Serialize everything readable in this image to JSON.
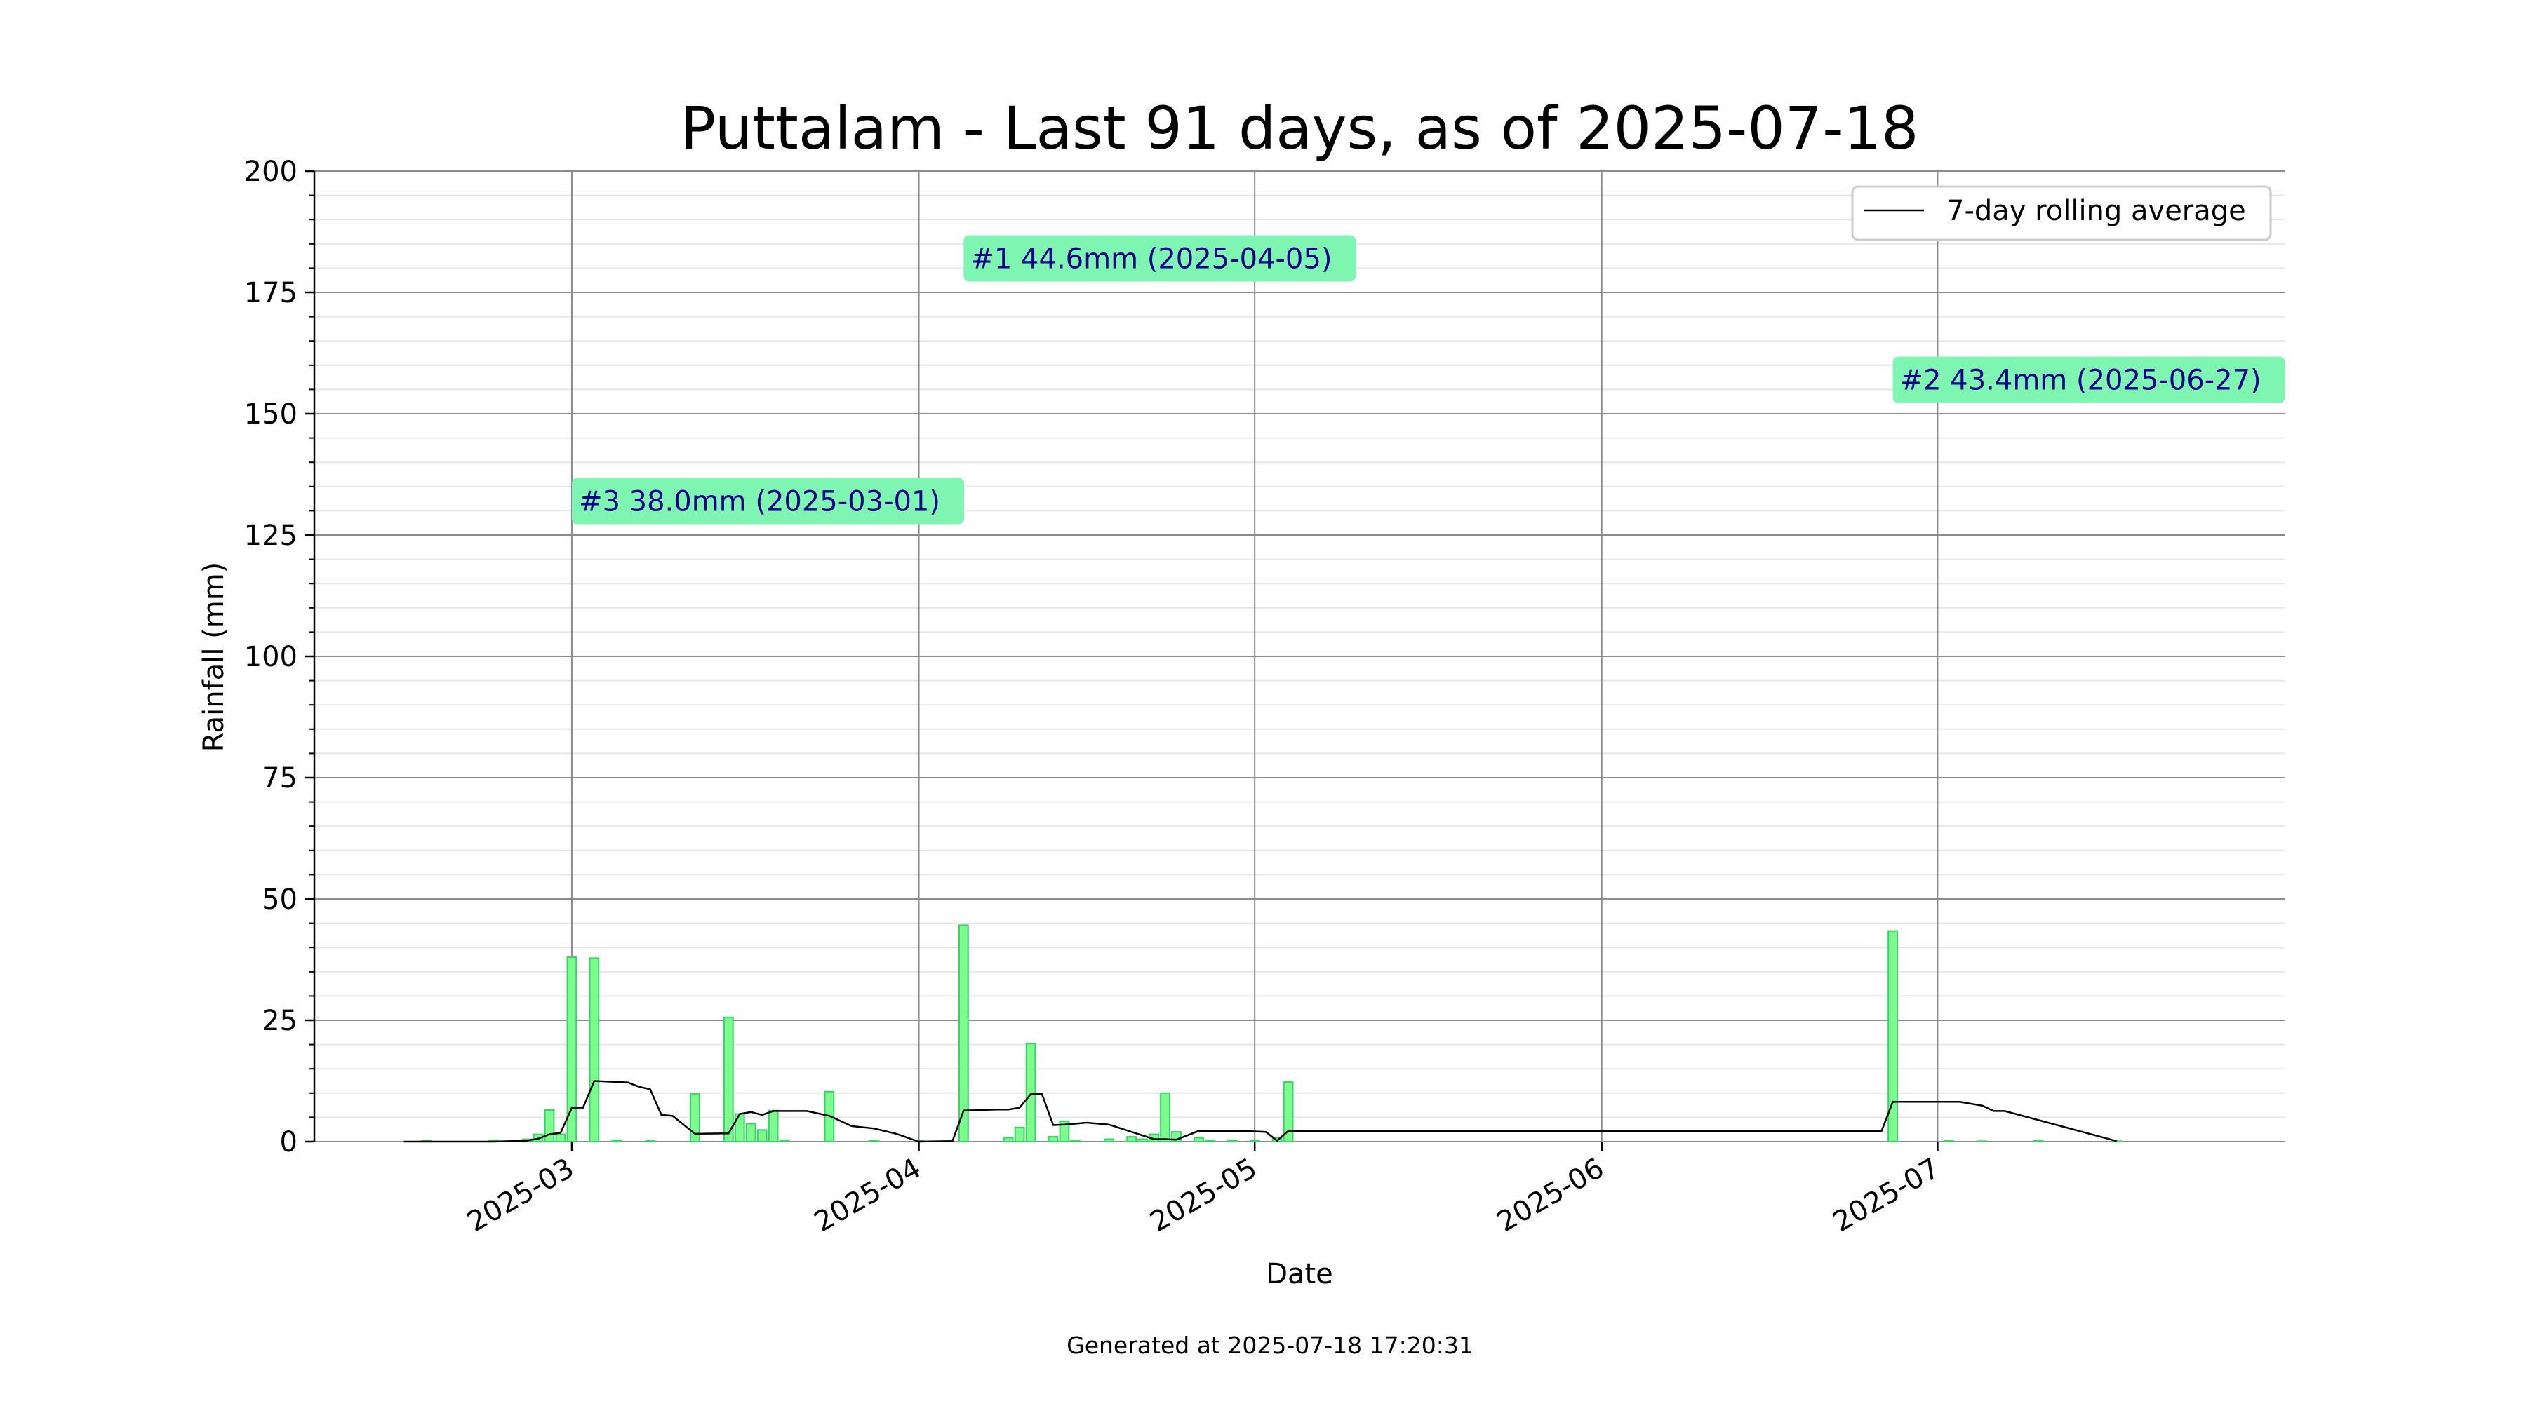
{
  "chart_data": {
    "type": "bar",
    "title": "Puttalam - Last 91 days, as of 2025-07-18",
    "xlabel": "Date",
    "ylabel": "Rainfall (mm)",
    "ylim": [
      0,
      200
    ],
    "y_ticks": [
      0,
      25,
      50,
      75,
      100,
      125,
      150,
      175,
      200
    ],
    "x_ticks": [
      "2025-03",
      "2025-04",
      "2025-05",
      "2025-06",
      "2025-07"
    ],
    "x_tick_dates": [
      "2025-03-01",
      "2025-04-01",
      "2025-05-01",
      "2025-06-01",
      "2025-07-01"
    ],
    "xlim": [
      "2025-02-06",
      "2025-08-01"
    ],
    "grid": true,
    "legend": {
      "position": "top-right",
      "entries": [
        "7-day rolling average"
      ]
    },
    "bar_color": "#7cfc8c",
    "bar_edge_color": "#3ccf6a",
    "line_color": "#000000",
    "annotation_bg": "#7ef5b0",
    "annotation_text_color": "#00008b",
    "series": [
      {
        "name": "Rainfall",
        "x": [
          "2025-02-16",
          "2025-02-22",
          "2025-02-25",
          "2025-02-26",
          "2025-02-27",
          "2025-02-28",
          "2025-03-01",
          "2025-03-03",
          "2025-03-05",
          "2025-03-08",
          "2025-03-12",
          "2025-03-15",
          "2025-03-16",
          "2025-03-17",
          "2025-03-18",
          "2025-03-19",
          "2025-03-20",
          "2025-03-24",
          "2025-03-28",
          "2025-04-01",
          "2025-04-05",
          "2025-04-09",
          "2025-04-10",
          "2025-04-11",
          "2025-04-13",
          "2025-04-14",
          "2025-04-15",
          "2025-04-18",
          "2025-04-20",
          "2025-04-21",
          "2025-04-22",
          "2025-04-23",
          "2025-04-24",
          "2025-04-26",
          "2025-04-27",
          "2025-04-29",
          "2025-05-01",
          "2025-05-03",
          "2025-05-04",
          "2025-06-27",
          "2025-07-02",
          "2025-07-05",
          "2025-07-10",
          "2025-07-17"
        ],
        "values": [
          0.2,
          0.3,
          0.5,
          1.5,
          6.5,
          1.5,
          38.0,
          37.8,
          0.3,
          0.2,
          9.8,
          25.6,
          5.7,
          3.7,
          2.4,
          6.4,
          0.3,
          10.3,
          0.2,
          0.2,
          44.6,
          0.8,
          2.9,
          20.2,
          1.0,
          4.2,
          0.2,
          0.5,
          1.0,
          0.5,
          1.5,
          10.0,
          2.0,
          0.8,
          0.2,
          0.3,
          0.2,
          0.8,
          12.3,
          43.4,
          0.2,
          0.1,
          0.2,
          0.1
        ]
      },
      {
        "name": "7-day rolling average",
        "type": "line",
        "x": [
          "2025-02-14",
          "2025-02-22",
          "2025-02-25",
          "2025-02-26",
          "2025-02-27",
          "2025-02-28",
          "2025-03-01",
          "2025-03-02",
          "2025-03-03",
          "2025-03-06",
          "2025-03-07",
          "2025-03-08",
          "2025-03-09",
          "2025-03-10",
          "2025-03-12",
          "2025-03-15",
          "2025-03-16",
          "2025-03-17",
          "2025-03-18",
          "2025-03-19",
          "2025-03-22",
          "2025-03-24",
          "2025-03-26",
          "2025-03-28",
          "2025-03-30",
          "2025-04-01",
          "2025-04-04",
          "2025-04-05",
          "2025-04-08",
          "2025-04-09",
          "2025-04-10",
          "2025-04-11",
          "2025-04-12",
          "2025-04-13",
          "2025-04-14",
          "2025-04-16",
          "2025-04-18",
          "2025-04-22",
          "2025-04-23",
          "2025-04-24",
          "2025-04-26",
          "2025-04-30",
          "2025-05-02",
          "2025-05-03",
          "2025-05-04",
          "2025-06-26",
          "2025-06-27",
          "2025-07-03",
          "2025-07-05",
          "2025-07-06",
          "2025-07-07",
          "2025-07-17"
        ],
        "values": [
          0,
          0,
          0.2,
          0.6,
          1.5,
          1.8,
          7.0,
          7.0,
          12.5,
          12.2,
          11.3,
          10.8,
          5.5,
          5.3,
          1.6,
          1.7,
          5.7,
          6.1,
          5.5,
          6.3,
          6.3,
          5.3,
          3.2,
          2.7,
          1.6,
          0,
          0.1,
          6.4,
          6.6,
          6.6,
          7.0,
          9.8,
          9.8,
          3.4,
          3.5,
          3.9,
          3.5,
          0.5,
          0.5,
          0.4,
          2.2,
          2.2,
          2.0,
          0.2,
          2.2,
          2.2,
          8.2,
          8.2,
          7.4,
          6.3,
          6.3,
          0.1
        ]
      }
    ],
    "annotations": [
      {
        "label": "#1 44.6mm (2025-04-05)",
        "date": "2025-04-05",
        "value": 44.6,
        "text_y": 182
      },
      {
        "label": "#2 43.4mm (2025-06-27)",
        "date": "2025-06-27",
        "value": 43.4,
        "text_y": 157
      },
      {
        "label": "#3 38.0mm (2025-03-01)",
        "date": "2025-03-01",
        "value": 38.0,
        "text_y": 132
      }
    ]
  },
  "footer": "Generated at 2025-07-18 17:20:31"
}
